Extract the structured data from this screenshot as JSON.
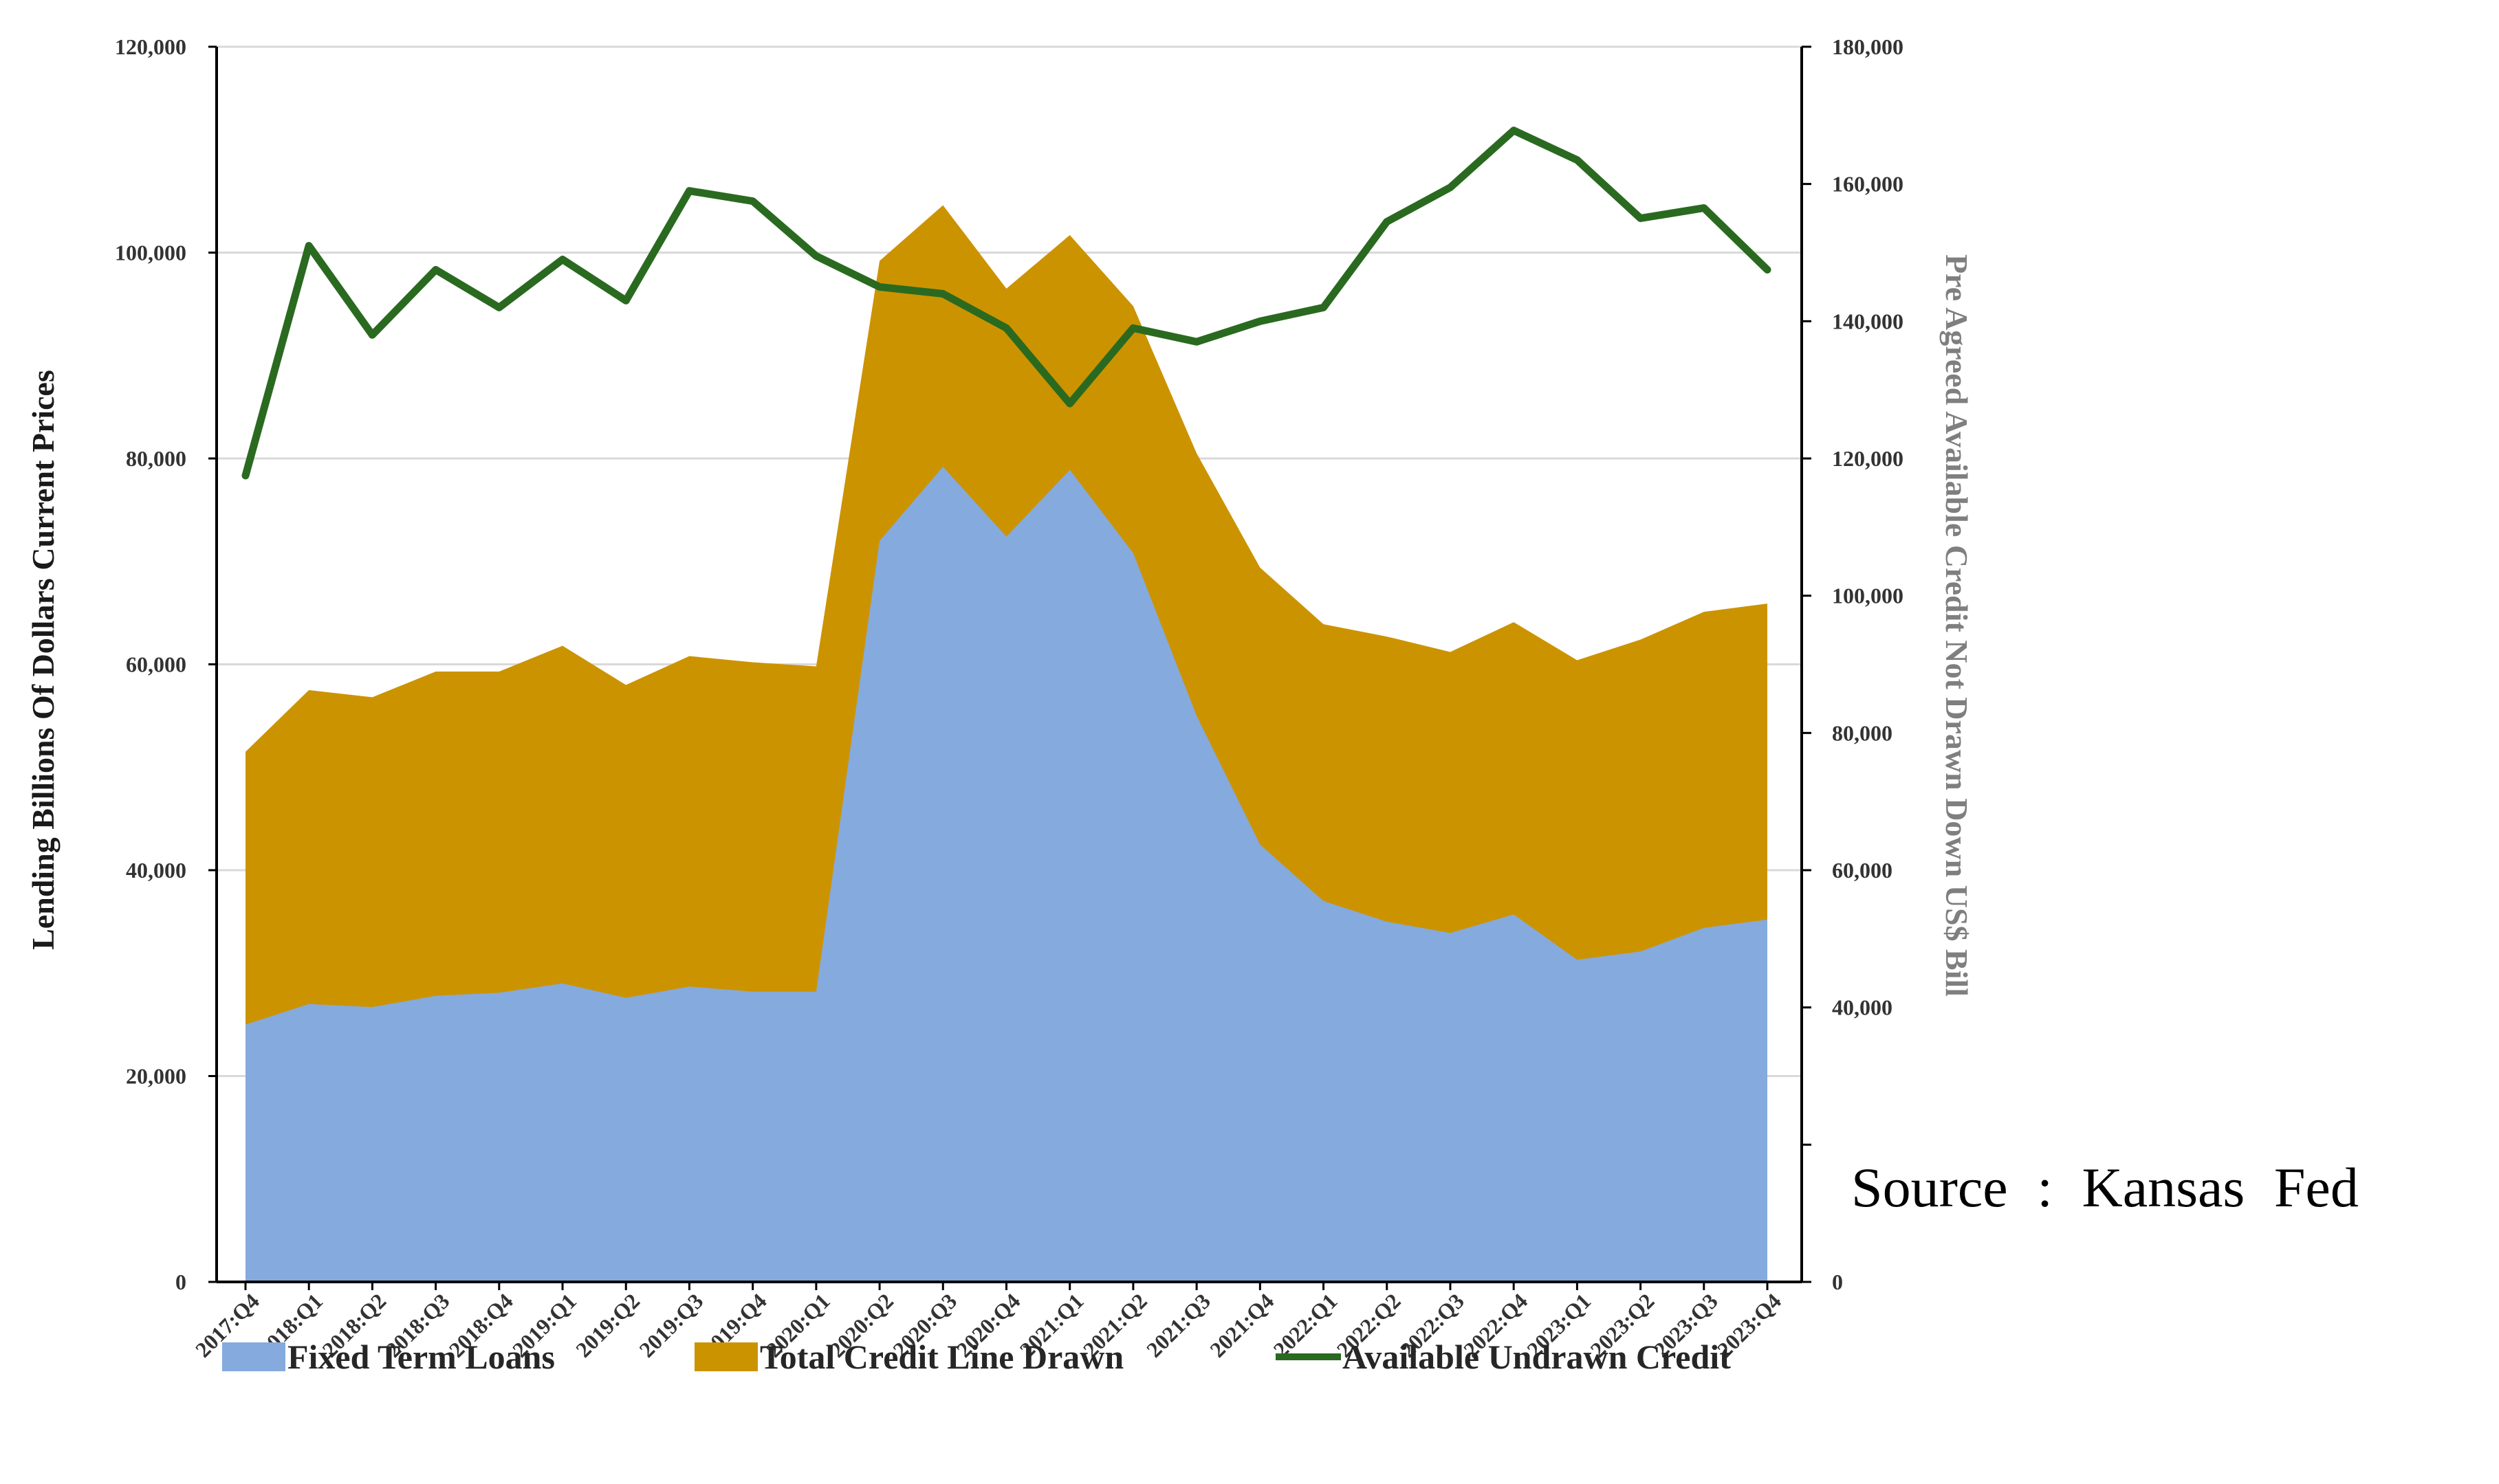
{
  "chart_data": {
    "type": "area",
    "title": "",
    "source_note": "Source : Kansas Fed",
    "categories": [
      "2017:Q4",
      "2018:Q1",
      "2018:Q2",
      "2018:Q3",
      "2018:Q4",
      "2019:Q1",
      "2019:Q2",
      "2019:Q3",
      "2019:Q4",
      "2020:Q1",
      "2020:Q2",
      "2020:Q3",
      "2020:Q4",
      "2021:Q1",
      "2021:Q2",
      "2021:Q3",
      "2021:Q4",
      "2022:Q1",
      "2022:Q2",
      "2022:Q3",
      "2022:Q4",
      "2023:Q1",
      "2023:Q2",
      "2023:Q3",
      "2023:Q4"
    ],
    "ylabel": "Lending Billions Of Dollars Current Prices",
    "ylabel_right": "Pre Agreed Available Credit Not Drawn Down US$ Bill",
    "ylim": [
      0,
      120000
    ],
    "ylim_right": [
      0,
      180000
    ],
    "yticks": [
      "0",
      "20,000",
      "40,000",
      "60,000",
      "80,000",
      "100,000",
      "120,000"
    ],
    "yticks_right": [
      "0",
      "",
      "40,000",
      "60,000",
      "80,000",
      "100,000",
      "120,000",
      "140,000",
      "160,000",
      "180,000"
    ],
    "grid": true,
    "legend_position": "bottom",
    "series": [
      {
        "name": "Fixed Term Loans",
        "kind": "area",
        "axis": "left",
        "color": "#85aadd",
        "values": [
          25000,
          27000,
          26700,
          27800,
          28100,
          29000,
          27600,
          28700,
          28200,
          28200,
          72000,
          79200,
          72400,
          78900,
          70800,
          55000,
          42500,
          37000,
          35000,
          33900,
          35700,
          31300,
          32100,
          34400,
          35200
        ]
      },
      {
        "name": "Total Credit Line Drawn",
        "kind": "area",
        "axis": "left",
        "color": "#cc9300",
        "values": [
          51500,
          57500,
          56800,
          59300,
          59300,
          61800,
          58000,
          60800,
          60200,
          59800,
          99200,
          104600,
          96500,
          101700,
          94800,
          80500,
          69400,
          63900,
          62700,
          61200,
          64100,
          60400,
          62400,
          65100,
          65900
        ]
      },
      {
        "name": "Available Undrawn Credit",
        "kind": "line",
        "axis": "right",
        "color": "#2a6a20",
        "values": [
          117500,
          151000,
          138000,
          147500,
          142000,
          149000,
          143000,
          159000,
          157500,
          149500,
          145000,
          144000,
          139000,
          128000,
          139000,
          137000,
          140000,
          142000,
          154500,
          159500,
          167800,
          163500,
          155000,
          156500,
          147500
        ]
      }
    ]
  }
}
